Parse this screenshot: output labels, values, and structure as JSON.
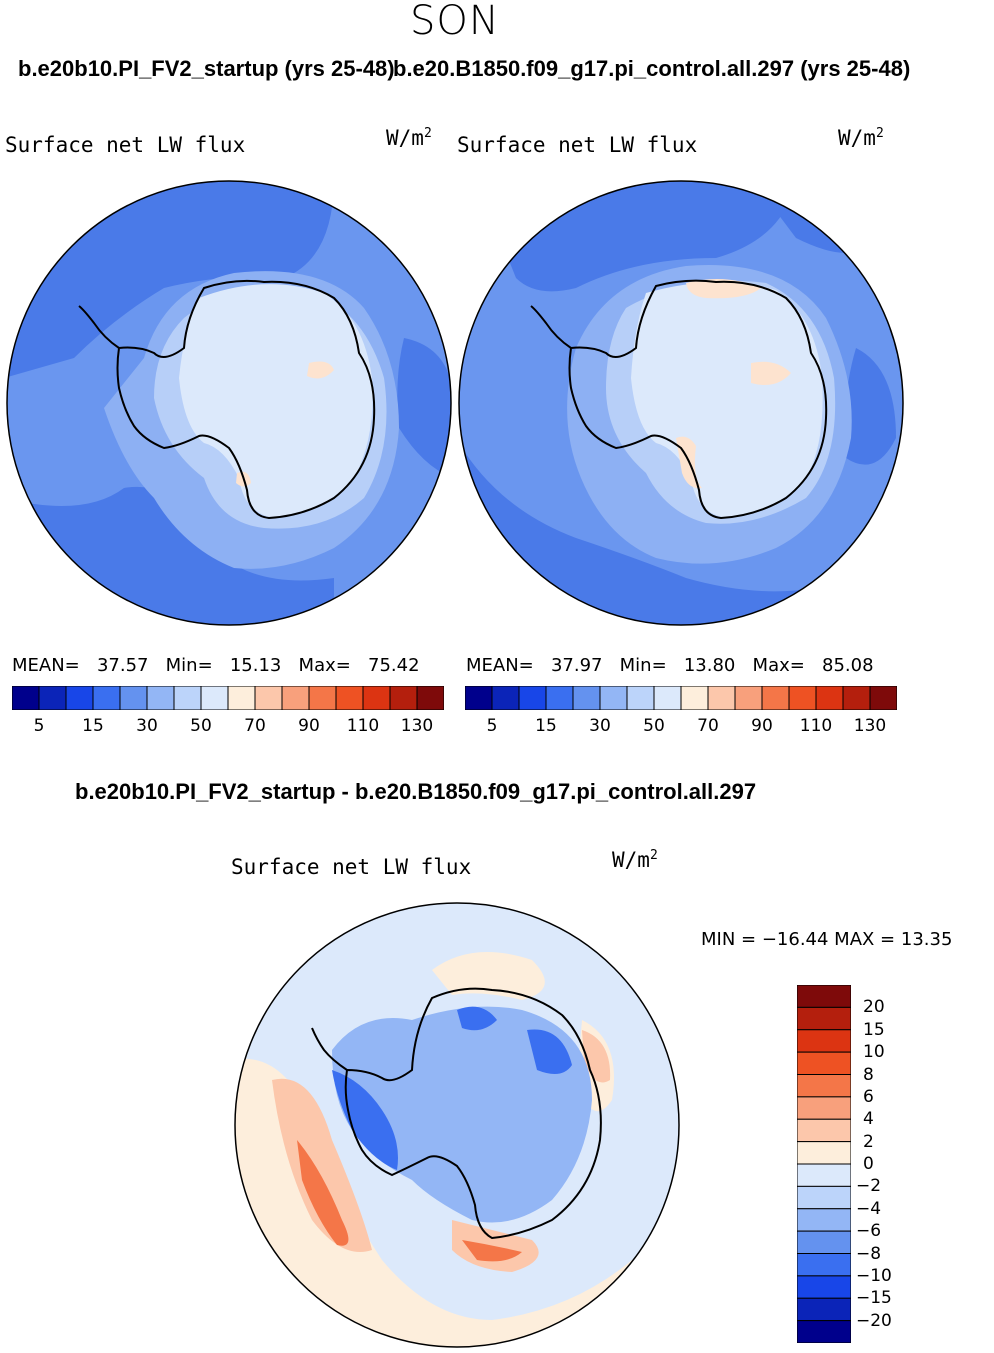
{
  "figure": {
    "season": "SON",
    "case_a": "b.e20b10.PI_FV2_startup (yrs 25-48)",
    "case_b": "b.e20.B1850.f09_g17.pi_control.all.297 (yrs 25-48)",
    "diff_title": "b.e20b10.PI_FV2_startup - b.e20.B1850.f09_g17.pi_control.all.297"
  },
  "panels": {
    "left": {
      "variable": "Surface net LW flux",
      "units": "W/m",
      "units_exp": "2",
      "mean_label": "MEAN=",
      "mean_value": "37.57",
      "min_label": "Min=",
      "min_value": "15.13",
      "max_label": "Max=",
      "max_value": "75.42"
    },
    "right": {
      "variable": "Surface net LW flux",
      "units": "W/m",
      "units_exp": "2",
      "mean_label": "MEAN=",
      "mean_value": "37.97",
      "min_label": "Min=",
      "min_value": "13.80",
      "max_label": "Max=",
      "max_value": "85.08"
    },
    "diff": {
      "variable": "Surface net LW flux",
      "units": "W/m",
      "units_exp": "2",
      "minmax": "MIN = −16.44  MAX =   13.35"
    }
  },
  "colorbars": {
    "abs_colors": [
      "#00008c",
      "#0b24b8",
      "#1846e8",
      "#3a6ff0",
      "#6492ef",
      "#93b6f5",
      "#bcd4fa",
      "#dce9fb",
      "#fdeedc",
      "#fcc7ab",
      "#f8a07c",
      "#f47648",
      "#ee5223",
      "#dc3412",
      "#b41f0d",
      "#7e0a0a"
    ],
    "abs_ticks": [
      "5",
      "15",
      "30",
      "50",
      "70",
      "90",
      "110",
      "130"
    ],
    "diff_colors": [
      "#7e0a0a",
      "#b41f0d",
      "#dc3412",
      "#ee5223",
      "#f47648",
      "#f8a07c",
      "#fcc7ab",
      "#fdeedc",
      "#dce9fb",
      "#bcd4fa",
      "#93b6f5",
      "#6492ef",
      "#3a6ff0",
      "#1846e8",
      "#0b24b8",
      "#00008c"
    ],
    "diff_ticks": [
      "20",
      "15",
      "10",
      "8",
      "6",
      "4",
      "2",
      "0",
      "−2",
      "−4",
      "−6",
      "−8",
      "−10",
      "−15",
      "−20"
    ]
  },
  "map_colors": {
    "ocean_far": "#6a96ef",
    "ocean_band": "#8db0f3",
    "ocean_dark": "#4a7ae8",
    "ice_edge": "#b7cff8",
    "continent": "#dce9fb",
    "warm_patch": "#fde3cf",
    "diff_bg": "#dce9fb",
    "diff_warm": "#fdeedc",
    "diff_mid": "#fcc7ab",
    "diff_hot": "#f47648",
    "diff_cool": "#93b6f5",
    "diff_cold": "#3a6ff0"
  }
}
